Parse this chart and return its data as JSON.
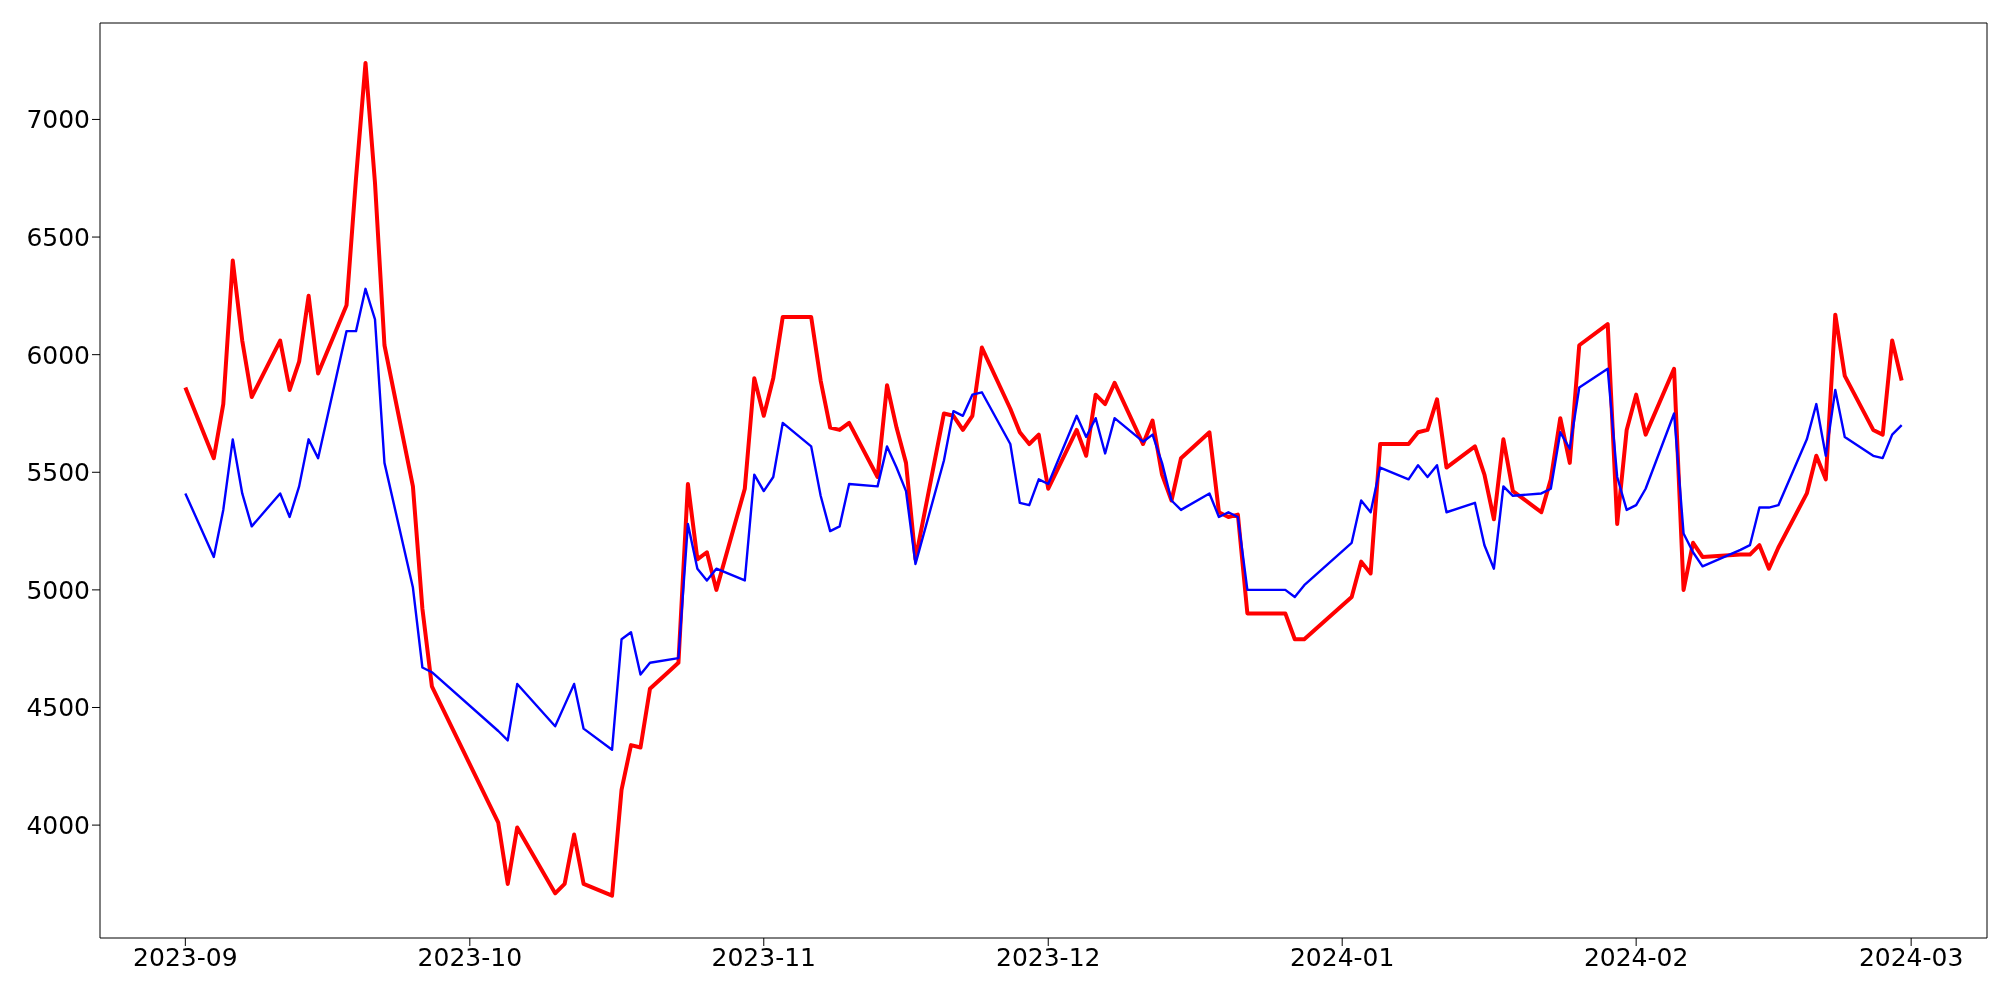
{
  "chart_data": {
    "type": "line",
    "x": [
      "2023-09-01",
      "2023-09-04",
      "2023-09-05",
      "2023-09-06",
      "2023-09-07",
      "2023-09-08",
      "2023-09-11",
      "2023-09-12",
      "2023-09-13",
      "2023-09-14",
      "2023-09-15",
      "2023-09-18",
      "2023-09-19",
      "2023-09-20",
      "2023-09-21",
      "2023-09-22",
      "2023-09-25",
      "2023-09-26",
      "2023-09-27",
      "2023-10-04",
      "2023-10-05",
      "2023-10-06",
      "2023-10-10",
      "2023-10-11",
      "2023-10-12",
      "2023-10-13",
      "2023-10-16",
      "2023-10-17",
      "2023-10-18",
      "2023-10-19",
      "2023-10-20",
      "2023-10-23",
      "2023-10-24",
      "2023-10-25",
      "2023-10-26",
      "2023-10-27",
      "2023-10-30",
      "2023-10-31",
      "2023-11-01",
      "2023-11-02",
      "2023-11-03",
      "2023-11-06",
      "2023-11-07",
      "2023-11-08",
      "2023-11-09",
      "2023-11-10",
      "2023-11-13",
      "2023-11-14",
      "2023-11-15",
      "2023-11-16",
      "2023-11-17",
      "2023-11-20",
      "2023-11-21",
      "2023-11-22",
      "2023-11-23",
      "2023-11-24",
      "2023-11-27",
      "2023-11-28",
      "2023-11-29",
      "2023-11-30",
      "2023-12-01",
      "2023-12-04",
      "2023-12-05",
      "2023-12-06",
      "2023-12-07",
      "2023-12-08",
      "2023-12-11",
      "2023-12-12",
      "2023-12-13",
      "2023-12-14",
      "2023-12-15",
      "2023-12-18",
      "2023-12-19",
      "2023-12-20",
      "2023-12-21",
      "2023-12-22",
      "2023-12-26",
      "2023-12-27",
      "2023-12-28",
      "2024-01-02",
      "2024-01-03",
      "2024-01-04",
      "2024-01-05",
      "2024-01-08",
      "2024-01-09",
      "2024-01-10",
      "2024-01-11",
      "2024-01-12",
      "2024-01-15",
      "2024-01-16",
      "2024-01-17",
      "2024-01-18",
      "2024-01-19",
      "2024-01-22",
      "2024-01-23",
      "2024-01-24",
      "2024-01-25",
      "2024-01-26",
      "2024-01-29",
      "2024-01-30",
      "2024-01-31",
      "2024-02-01",
      "2024-02-02",
      "2024-02-05",
      "2024-02-06",
      "2024-02-07",
      "2024-02-08",
      "2024-02-12",
      "2024-02-13",
      "2024-02-14",
      "2024-02-15",
      "2024-02-16",
      "2024-02-19",
      "2024-02-20",
      "2024-02-21",
      "2024-02-22",
      "2024-02-23",
      "2024-02-26",
      "2024-02-27",
      "2024-02-28",
      "2024-02-29"
    ],
    "series": [
      {
        "color": "#ff0000",
        "values": [
          5860,
          5560,
          5790,
          6400,
          6060,
          5820,
          6060,
          5850,
          5970,
          6250,
          5920,
          6210,
          6750,
          7240,
          6730,
          6040,
          5440,
          4920,
          4590,
          4010,
          3750,
          3990,
          3710,
          3750,
          3960,
          3750,
          3700,
          4150,
          4340,
          4330,
          4580,
          4690,
          5450,
          5130,
          5160,
          5000,
          5430,
          5900,
          5740,
          5900,
          6160,
          6160,
          5890,
          5690,
          5680,
          5710,
          5480,
          5870,
          5690,
          5540,
          5130,
          5750,
          5740,
          5680,
          5740,
          6030,
          5770,
          5670,
          5620,
          5660,
          5430,
          5680,
          5570,
          5830,
          5790,
          5880,
          5620,
          5720,
          5490,
          5380,
          5560,
          5670,
          5330,
          5310,
          5320,
          4900,
          4900,
          4790,
          4790,
          4970,
          5120,
          5070,
          5620,
          5620,
          5670,
          5680,
          5810,
          5520,
          5610,
          5490,
          5300,
          5640,
          5420,
          5330,
          5470,
          5730,
          5540,
          6040,
          6130,
          5280,
          5680,
          5830,
          5660,
          5940,
          5000,
          5200,
          5140,
          5150,
          5150,
          5190,
          5090,
          5180,
          5410,
          5570,
          5470,
          6170,
          5910,
          5680,
          5660,
          6060,
          5890
        ]
      },
      {
        "color": "#0000ff",
        "values": [
          5410,
          5140,
          5340,
          5640,
          5410,
          5270,
          5410,
          5310,
          5440,
          5640,
          5560,
          6100,
          6100,
          6280,
          6150,
          5540,
          5010,
          4670,
          4650,
          4400,
          4360,
          4600,
          4420,
          4510,
          4600,
          4410,
          4320,
          4790,
          4820,
          4640,
          4690,
          4710,
          5280,
          5090,
          5040,
          5090,
          5040,
          5490,
          5420,
          5480,
          5710,
          5610,
          5400,
          5250,
          5270,
          5450,
          5440,
          5610,
          5520,
          5420,
          5110,
          5550,
          5760,
          5740,
          5830,
          5840,
          5620,
          5370,
          5360,
          5470,
          5450,
          5740,
          5650,
          5730,
          5580,
          5730,
          5630,
          5660,
          5540,
          5380,
          5340,
          5410,
          5310,
          5330,
          5310,
          5000,
          5000,
          4970,
          5020,
          5200,
          5380,
          5330,
          5520,
          5470,
          5530,
          5480,
          5530,
          5330,
          5370,
          5190,
          5090,
          5440,
          5400,
          5410,
          5430,
          5670,
          5600,
          5860,
          5940,
          5480,
          5340,
          5360,
          5430,
          5750,
          5240,
          5160,
          5100,
          5170,
          5190,
          5350,
          5350,
          5360,
          5640,
          5790,
          5570,
          5850,
          5650,
          5570,
          5560,
          5660,
          5700
        ]
      }
    ],
    "xlim": [
      "2023-08-23",
      "2024-03-09"
    ],
    "xticks": [
      "2023-09",
      "2023-10",
      "2023-11",
      "2023-12",
      "2024-01",
      "2024-02",
      "2024-03"
    ],
    "ylim": [
      3520,
      7410
    ],
    "yticks": [
      4000,
      4500,
      5000,
      5500,
      6000,
      6500,
      7000
    ],
    "grid": false,
    "legend": false
  }
}
